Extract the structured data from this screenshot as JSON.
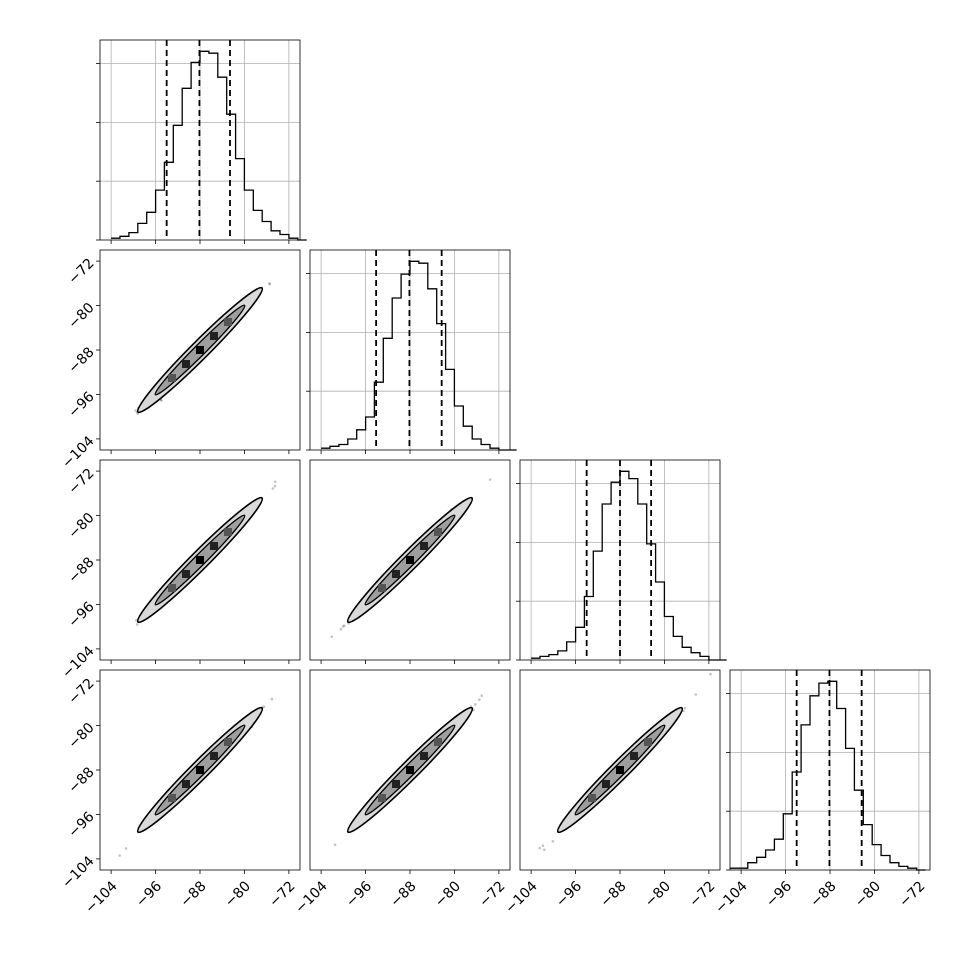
{
  "chart_data": {
    "type": "corner",
    "n_params": 4,
    "parameter_labels": [
      "",
      "",
      "",
      ""
    ],
    "axis_range": [
      -106,
      -70
    ],
    "ticks": [
      -104,
      -96,
      -88,
      -80,
      -72
    ],
    "tick_labels": [
      "−104",
      "−96",
      "−88",
      "−80",
      "−72"
    ],
    "grid": true,
    "colors": {
      "line": "#000000",
      "grid": "#b0b0b0",
      "scatter": "#555555",
      "contour_fill": "#d9d9d9"
    },
    "marginals": [
      {
        "param_index": 0,
        "bin_start": -104.0,
        "bin_width": 1.6,
        "counts": [
          1,
          2,
          4,
          9,
          15,
          27,
          42,
          62,
          82,
          96,
          102,
          101,
          88,
          68,
          44,
          27,
          16,
          10,
          5,
          3,
          1,
          0
        ],
        "quantiles": [
          -94.0,
          -88.1,
          -82.6
        ]
      },
      {
        "param_index": 1,
        "bin_start": -104.0,
        "bin_width": 1.6,
        "counts": [
          1,
          2,
          3,
          6,
          11,
          18,
          37,
          61,
          83,
          96,
          103,
          102,
          88,
          69,
          44,
          24,
          13,
          6,
          3,
          1,
          0,
          0
        ],
        "quantiles": [
          -94.1,
          -88.1,
          -82.3
        ]
      },
      {
        "param_index": 2,
        "bin_start": -104.0,
        "bin_width": 1.6,
        "counts": [
          1,
          2,
          3,
          5,
          10,
          18,
          35,
          60,
          86,
          98,
          104,
          100,
          86,
          64,
          43,
          24,
          13,
          7,
          4,
          2,
          0,
          0
        ],
        "quantiles": [
          -94.0,
          -88.0,
          -82.4
        ]
      },
      {
        "param_index": 3,
        "bin_start": -106.0,
        "bin_width": 1.6,
        "counts": [
          1,
          1,
          4,
          7,
          11,
          17,
          31,
          54,
          80,
          96,
          103,
          104,
          89,
          67,
          44,
          25,
          14,
          8,
          4,
          2,
          1,
          0
        ],
        "quantiles": [
          -94.0,
          -88.1,
          -82.3
        ]
      }
    ],
    "joint_2d": [
      {
        "x_param": 0,
        "y_param": 1,
        "mean": [
          -88,
          -88
        ],
        "std": [
          3.6,
          3.6
        ],
        "correlation": 0.99
      },
      {
        "x_param": 0,
        "y_param": 2,
        "mean": [
          -88,
          -88
        ],
        "std": [
          3.6,
          3.6
        ],
        "correlation": 0.99
      },
      {
        "x_param": 1,
        "y_param": 2,
        "mean": [
          -88,
          -88
        ],
        "std": [
          3.6,
          3.6
        ],
        "correlation": 0.99
      },
      {
        "x_param": 0,
        "y_param": 3,
        "mean": [
          -88,
          -88
        ],
        "std": [
          3.6,
          3.6
        ],
        "correlation": 0.99
      },
      {
        "x_param": 1,
        "y_param": 3,
        "mean": [
          -88,
          -88
        ],
        "std": [
          3.6,
          3.6
        ],
        "correlation": 0.99
      },
      {
        "x_param": 2,
        "y_param": 3,
        "mean": [
          -88,
          -88
        ],
        "std": [
          3.6,
          3.6
        ],
        "correlation": 0.99
      }
    ]
  }
}
